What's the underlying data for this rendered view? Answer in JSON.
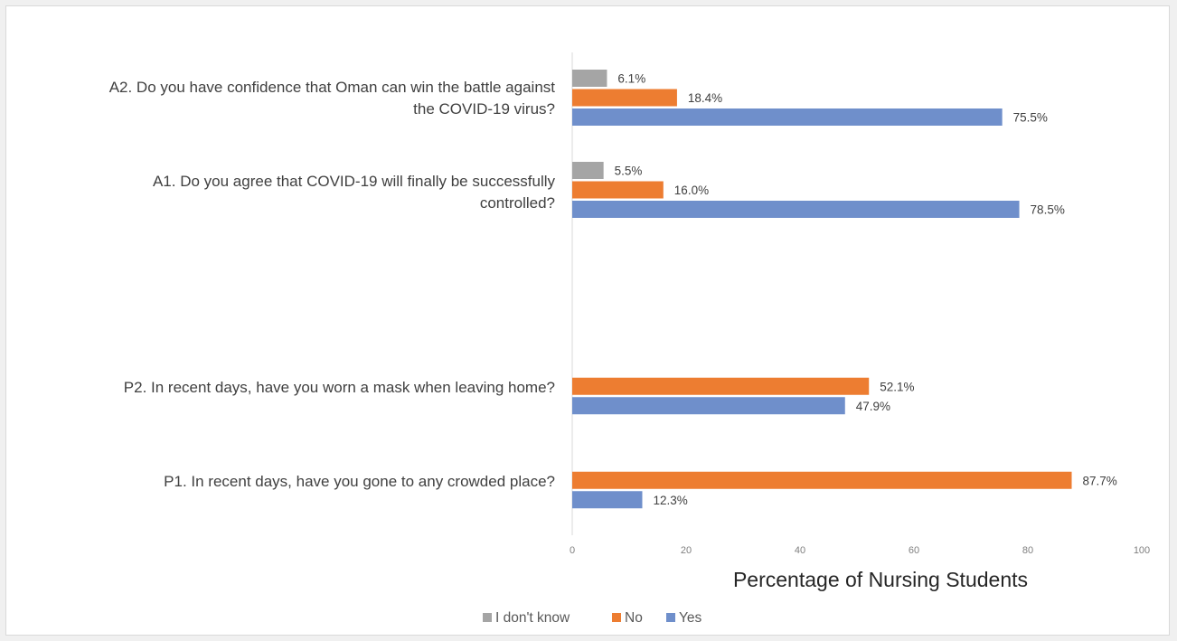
{
  "chart_data": {
    "type": "bar",
    "orientation": "horizontal",
    "title": "",
    "xlabel": "Percentage of Nursing Students",
    "ylabel": "",
    "xlim": [
      0,
      100
    ],
    "x_ticks": [
      0,
      20,
      40,
      60,
      80,
      100
    ],
    "legend_position": "bottom",
    "grid": false,
    "colors": {
      "I don't know": "#a5a5a5",
      "No": "#ed7d31",
      "Yes": "#6f8fcb"
    },
    "legend": [
      "I don't know",
      "No",
      "Yes"
    ],
    "categories": [
      {
        "label_lines": [
          "A2. Do you have confidence that Oman can win the battle against",
          "the COVID-19 virus?"
        ],
        "bars": [
          {
            "series": "I don't know",
            "value": 6.1,
            "label": "6.1%"
          },
          {
            "series": "No",
            "value": 18.4,
            "label": "18.4%"
          },
          {
            "series": "Yes",
            "value": 75.5,
            "label": "75.5%"
          }
        ]
      },
      {
        "label_lines": [
          "A1. Do you agree that COVID-19 will finally be successfully",
          "controlled?"
        ],
        "bars": [
          {
            "series": "I don't know",
            "value": 5.5,
            "label": "5.5%"
          },
          {
            "series": "No",
            "value": 16.0,
            "label": "16.0%"
          },
          {
            "series": "Yes",
            "value": 78.5,
            "label": "78.5%"
          }
        ]
      },
      {
        "label_lines": [],
        "bars": []
      },
      {
        "label_lines": [
          "P2. In recent days, have you worn a mask when leaving home?"
        ],
        "bars": [
          {
            "series": "No",
            "value": 52.1,
            "label": "52.1%"
          },
          {
            "series": "Yes",
            "value": 47.9,
            "label": "47.9%"
          }
        ]
      },
      {
        "label_lines": [
          "P1. In recent days, have you gone to any crowded place?"
        ],
        "bars": [
          {
            "series": "No",
            "value": 87.7,
            "label": "87.7%"
          },
          {
            "series": "Yes",
            "value": 12.3,
            "label": "12.3%"
          }
        ]
      }
    ]
  }
}
